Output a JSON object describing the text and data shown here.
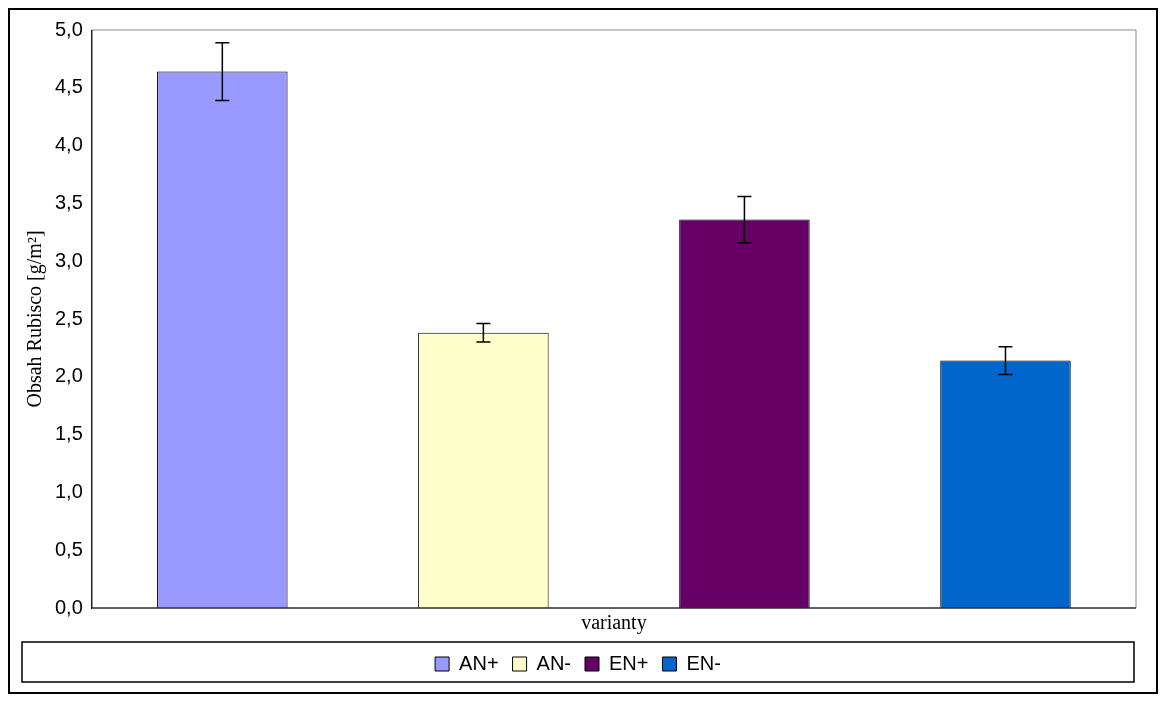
{
  "chart_data": {
    "type": "bar",
    "xlabel": "varianty",
    "ylabel": "Obsah Rubisco [g/m²]",
    "categories": [
      null,
      null,
      null,
      null
    ],
    "series": [
      {
        "name": "AN+",
        "color": "#9999ff",
        "values": [
          4.64,
          null,
          null,
          null
        ],
        "errors": [
          0.25,
          null,
          null,
          null
        ]
      },
      {
        "name": "AN-",
        "color": "#ffffcc",
        "values": [
          null,
          2.38,
          null,
          null
        ],
        "errors": [
          null,
          0.08,
          null,
          null
        ]
      },
      {
        "name": "EN+",
        "color": "#660066",
        "values": [
          null,
          null,
          3.36,
          null
        ],
        "errors": [
          null,
          null,
          0.2,
          null
        ]
      },
      {
        "name": "EN-",
        "color": "#0066cc",
        "values": [
          null,
          null,
          null,
          2.14
        ],
        "errors": [
          null,
          null,
          null,
          0.12
        ]
      }
    ],
    "ylim": [
      0,
      5
    ],
    "yticks": [
      {
        "value": 0,
        "label": "0,0"
      },
      {
        "value": 0.5,
        "label": "0,5"
      },
      {
        "value": 1,
        "label": "1,0"
      },
      {
        "value": 1.5,
        "label": "1,5"
      },
      {
        "value": 2,
        "label": "2,0"
      },
      {
        "value": 2.5,
        "label": "2,5"
      },
      {
        "value": 3,
        "label": "3,0"
      },
      {
        "value": 3.5,
        "label": "3,5"
      },
      {
        "value": 4,
        "label": "4,0"
      },
      {
        "value": 4.5,
        "label": "4,5"
      },
      {
        "value": 5,
        "label": "5,0"
      }
    ],
    "grid": false,
    "legend": "bottom"
  }
}
